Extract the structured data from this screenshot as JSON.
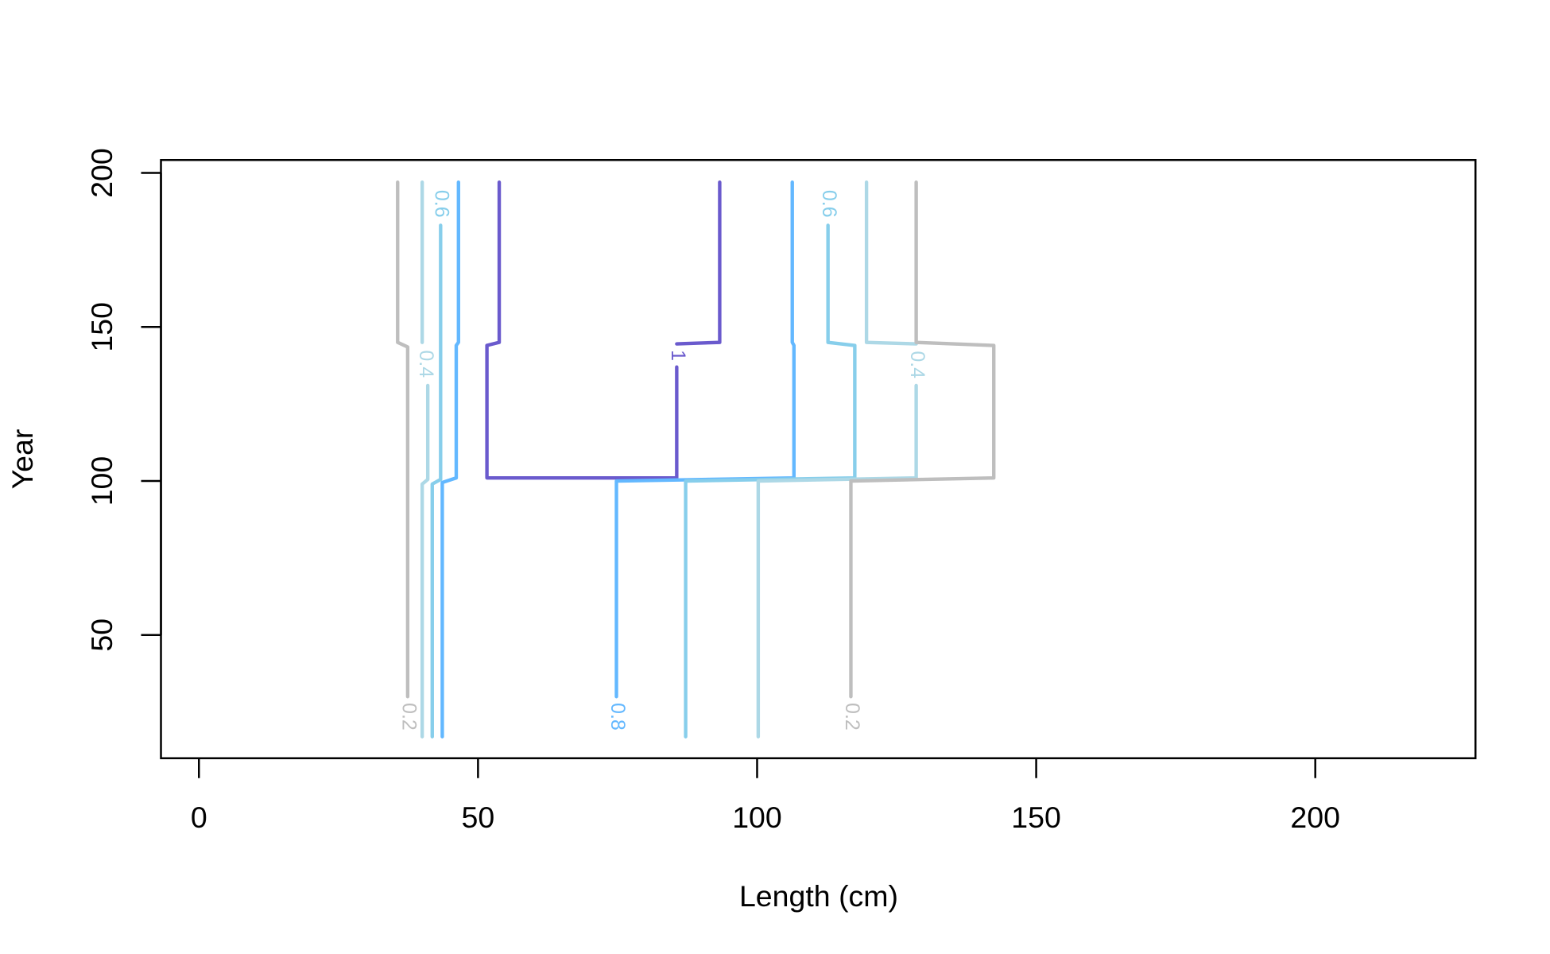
{
  "chart_data": {
    "type": "contour",
    "xlabel": "Length (cm)",
    "ylabel": "Year",
    "xlim": [
      -6.8,
      228.7
    ],
    "ylim": [
      10,
      204.2
    ],
    "xticks": [
      0,
      50,
      100,
      150,
      200
    ],
    "yticks": [
      50,
      100,
      150,
      200
    ],
    "lines": [
      {
        "level": 0.2,
        "color": "#bebebe",
        "x": [
          35.6,
          35.6,
          37.4,
          37.4,
          null,
          37.4
        ],
        "y": [
          197,
          145,
          143.5,
          30,
          null,
          17
        ]
      },
      {
        "level": 0.4,
        "color": "#add8e6",
        "x": [
          40,
          40,
          null,
          41,
          41,
          40,
          40
        ],
        "y": [
          197,
          145,
          null,
          131,
          100.5,
          99,
          17
        ]
      },
      {
        "level": 0.6,
        "color": "#87ceeb",
        "x": [
          43.3,
          null,
          43.3,
          43.3,
          41.8,
          41.8
        ],
        "y": [
          197,
          null,
          183,
          100.5,
          99,
          17
        ]
      },
      {
        "level": 0.8,
        "color": "#63b8ff",
        "x": [
          46.5,
          46.5,
          46.1,
          46.1,
          43.6,
          43.6
        ],
        "y": [
          197,
          145,
          144,
          101,
          99.5,
          17
        ]
      },
      {
        "level": 1,
        "color": "#6a5acd",
        "x": [
          53.8,
          53.8,
          51.6,
          51.6,
          85.6,
          85.6,
          null,
          85.6,
          93.3,
          93.3
        ],
        "y": [
          197,
          145,
          144,
          101,
          101,
          137,
          null,
          144.5,
          145,
          197
        ]
      },
      {
        "level": 0.8,
        "color": "#63b8ff",
        "x": [
          106.3,
          106.3,
          106.6,
          106.6,
          74.8,
          74.8,
          null,
          74.8
        ],
        "y": [
          197,
          145,
          144,
          101,
          100,
          30,
          null,
          17
        ]
      },
      {
        "level": 0.6,
        "color": "#87ceeb",
        "x": [
          112.7,
          null,
          112.7,
          112.7,
          117.5,
          117.5,
          87.2,
          87.2
        ],
        "y": [
          197,
          null,
          183,
          145,
          144,
          101,
          100,
          17
        ]
      },
      {
        "level": 0.4,
        "color": "#add8e6",
        "x": [
          119.6,
          119.6,
          128.5,
          null,
          128.5,
          128.5,
          100.2,
          100.2
        ],
        "y": [
          197,
          145,
          144.5,
          null,
          131,
          101,
          100,
          17
        ]
      },
      {
        "level": 0.2,
        "color": "#bebebe",
        "x": [
          128.5,
          128.5,
          142.4,
          142.4,
          116.8,
          116.8,
          null,
          116.8
        ],
        "y": [
          197,
          145,
          144,
          101,
          100,
          30,
          null,
          17
        ]
      }
    ]
  }
}
